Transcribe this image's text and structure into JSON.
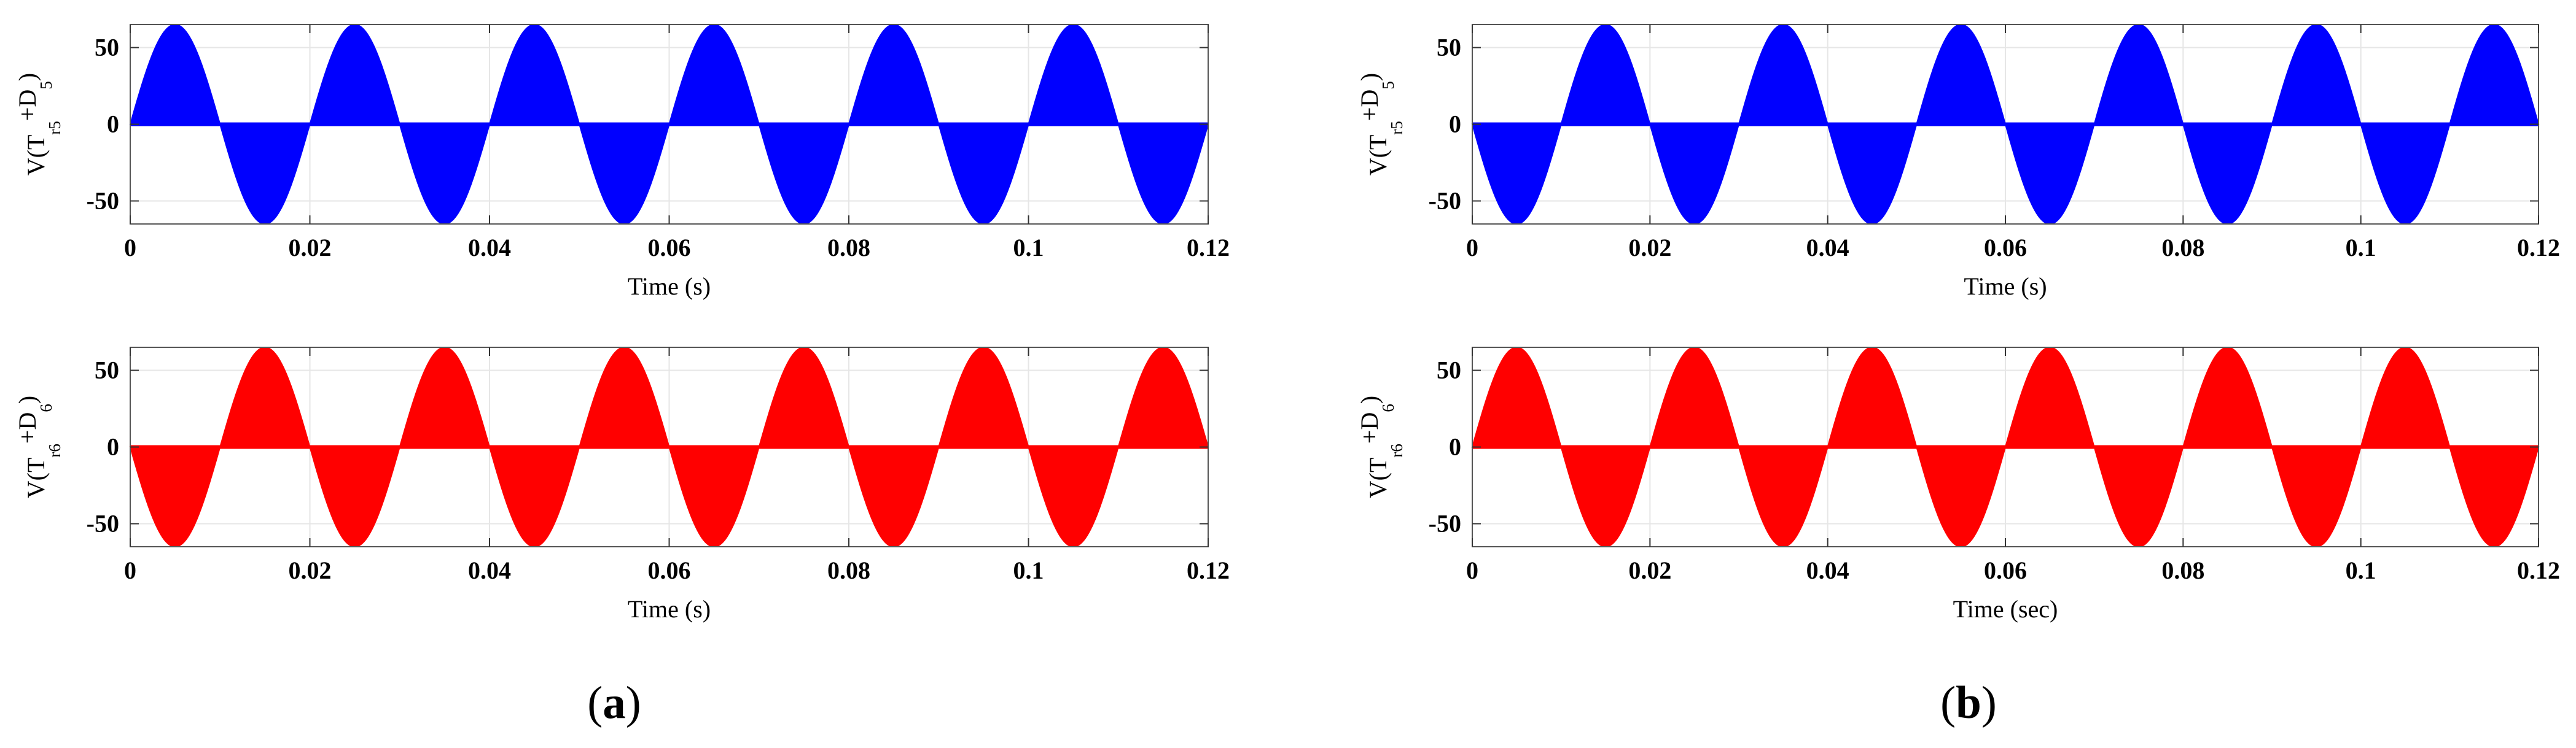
{
  "chart_data": [
    {
      "type": "area",
      "panel": "a",
      "ylabel": {
        "prefix": "V(T",
        "sub1": "r5",
        "mid": "+D",
        "sub2": "5",
        "suffix": ")"
      },
      "xlabel": "Time (s)",
      "series": [
        {
          "color": "#0000ff",
          "amplitude": 65,
          "frequency_hz": 50,
          "phase": "positive-first",
          "x": [
            0,
            0.12
          ]
        }
      ],
      "xlim": [
        0,
        0.12
      ],
      "ylim": [
        -65,
        65
      ],
      "xticks": [
        0,
        0.02,
        0.04,
        0.06,
        0.08,
        0.1,
        0.12
      ],
      "xtick_labels": [
        "0",
        "0.02",
        "0.04",
        "0.06",
        "0.08",
        "0.1",
        "0.12"
      ],
      "yticks": [
        50,
        0,
        -50
      ],
      "ytick_labels": [
        "50",
        "0",
        "-50"
      ],
      "grid": true
    },
    {
      "type": "area",
      "panel": "a",
      "ylabel": {
        "prefix": "V(T",
        "sub1": "r6",
        "mid": "+D",
        "sub2": "6",
        "suffix": ")"
      },
      "xlabel": "Time (s)",
      "series": [
        {
          "color": "#ff0000",
          "amplitude": 65,
          "frequency_hz": 50,
          "phase": "negative-first",
          "x": [
            0,
            0.12
          ]
        }
      ],
      "xlim": [
        0,
        0.12
      ],
      "ylim": [
        -65,
        65
      ],
      "xticks": [
        0,
        0.02,
        0.04,
        0.06,
        0.08,
        0.1,
        0.12
      ],
      "xtick_labels": [
        "0",
        "0.02",
        "0.04",
        "0.06",
        "0.08",
        "0.1",
        "0.12"
      ],
      "yticks": [
        50,
        0,
        -50
      ],
      "ytick_labels": [
        "50",
        "0",
        "-50"
      ],
      "grid": true
    },
    {
      "type": "area",
      "panel": "b",
      "ylabel": {
        "prefix": "V(T",
        "sub1": "r5",
        "mid": "+D",
        "sub2": "5",
        "suffix": ")"
      },
      "xlabel": "Time (s)",
      "series": [
        {
          "color": "#0000ff",
          "amplitude": 65,
          "frequency_hz": 50,
          "phase": "negative-first",
          "x": [
            0,
            0.12
          ]
        }
      ],
      "xlim": [
        0,
        0.12
      ],
      "ylim": [
        -65,
        65
      ],
      "xticks": [
        0,
        0.02,
        0.04,
        0.06,
        0.08,
        0.1,
        0.12
      ],
      "xtick_labels": [
        "0",
        "0.02",
        "0.04",
        "0.06",
        "0.08",
        "0.1",
        "0.12"
      ],
      "yticks": [
        50,
        0,
        -50
      ],
      "ytick_labels": [
        "50",
        "0",
        "-50"
      ],
      "grid": true
    },
    {
      "type": "area",
      "panel": "b",
      "ylabel": {
        "prefix": "V(T",
        "sub1": "r6",
        "mid": "+D",
        "sub2": "6",
        "suffix": ")"
      },
      "xlabel": "Time (sec)",
      "series": [
        {
          "color": "#ff0000",
          "amplitude": 65,
          "frequency_hz": 50,
          "phase": "positive-first",
          "x": [
            0,
            0.12
          ]
        }
      ],
      "xlim": [
        0,
        0.12
      ],
      "ylim": [
        -65,
        65
      ],
      "xticks": [
        0,
        0.02,
        0.04,
        0.06,
        0.08,
        0.1,
        0.12
      ],
      "xtick_labels": [
        "0",
        "0.02",
        "0.04",
        "0.06",
        "0.08",
        "0.1",
        "0.12"
      ],
      "yticks": [
        50,
        0,
        -50
      ],
      "ytick_labels": [
        "50",
        "0",
        "-50"
      ],
      "grid": true
    }
  ],
  "captions": {
    "a": {
      "open": "(",
      "letter": "a",
      "close": ")"
    },
    "b": {
      "open": "(",
      "letter": "b",
      "close": ")"
    }
  }
}
